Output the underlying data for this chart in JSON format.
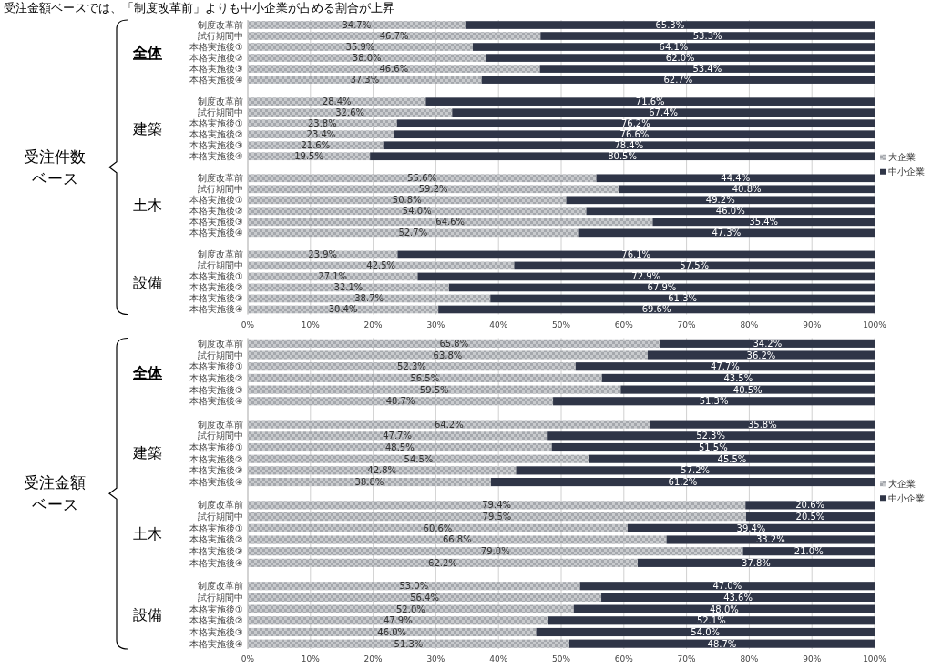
{
  "chart_data": [
    {
      "type": "bar",
      "orientation": "horizontal",
      "stacked": true,
      "title": "受注金額ベースでは、「制度改革前」よりも中小企業が占める割合が上昇",
      "categories": [
        "制度改革前",
        "試行期間中",
        "本格実施後①",
        "本格実施後②",
        "本格実施後③",
        "本格実施後④",
        null,
        "制度改革前",
        "試行期間中",
        "本格実施後①",
        "本格実施後②",
        "本格実施後③",
        "本格実施後④",
        null,
        "制度改革前",
        "試行期間中",
        "本格実施後①",
        "本格実施後②",
        "本格実施後③",
        "本格実施後④",
        null,
        "制度改革前",
        "試行期間中",
        "本格実施後①",
        "本格実施後②",
        "本格実施後③",
        "本格実施後④"
      ],
      "series": [
        {
          "name": "大企業",
          "color": "#a5a8ad",
          "values": [
            34.7,
            46.7,
            35.9,
            38.0,
            46.6,
            37.3,
            null,
            28.4,
            32.6,
            23.8,
            23.4,
            21.6,
            19.5,
            null,
            55.6,
            59.2,
            50.8,
            54.0,
            64.6,
            52.7,
            null,
            23.9,
            42.5,
            27.1,
            32.1,
            38.7,
            30.4
          ],
          "value_labels": [
            "34.7%",
            "46.7%",
            "35.9%",
            "38.0%",
            "46.6%",
            "37.3%",
            null,
            "28.4%",
            "32.6%",
            "23.8%",
            "23.4%",
            "21.6%",
            "19.5%",
            null,
            "55.6%",
            "59.2%",
            "50.8%",
            "54.0%",
            "64.6%",
            "52.7%",
            null,
            "23.9%",
            "42.5%",
            "27.1%",
            "32.1%",
            "38.7%",
            "30.4%"
          ]
        },
        {
          "name": "中小企業",
          "color": "#2f3547",
          "values": [
            65.3,
            53.3,
            64.1,
            62.0,
            53.4,
            62.7,
            null,
            71.6,
            67.4,
            76.2,
            76.6,
            78.4,
            80.5,
            null,
            44.4,
            40.8,
            49.2,
            46.0,
            35.4,
            47.3,
            null,
            76.1,
            57.5,
            72.9,
            67.9,
            61.3,
            69.6
          ],
          "value_labels": [
            "65.3%",
            "53.3%",
            "64.1%",
            "62.0%",
            "53.4%",
            "62.7%",
            null,
            "71.6%",
            "67.4%",
            "76.2%",
            "76.6%",
            "78.4%",
            "80.5%",
            null,
            "44.4%",
            "40.8%",
            "49.2%",
            "46.0%",
            "35.4%",
            "47.3%",
            null,
            "76.1%",
            "57.5%",
            "72.9%",
            "67.9%",
            "61.3%",
            "69.6%"
          ]
        }
      ],
      "xlim": [
        0,
        100
      ],
      "xticks": [
        {
          "value": 0,
          "label": "0%"
        },
        {
          "value": 10,
          "label": "10%"
        },
        {
          "value": 20,
          "label": "20%"
        },
        {
          "value": 30,
          "label": "30%"
        },
        {
          "value": 40,
          "label": "40%"
        },
        {
          "value": 50,
          "label": "50%"
        },
        {
          "value": 60,
          "label": "60%"
        },
        {
          "value": 70,
          "label": "70%"
        },
        {
          "value": 80,
          "label": "80%"
        },
        {
          "value": 90,
          "label": "90%"
        },
        {
          "value": 100,
          "label": "100%"
        }
      ],
      "grid": "x",
      "legend": "right",
      "annotations": [
        "全体",
        "建築",
        "土木",
        "設備",
        "受注件数",
        "ベース"
      ]
    },
    {
      "type": "bar",
      "orientation": "horizontal",
      "stacked": true,
      "categories": [
        "制度改革前",
        "試行期間中",
        "本格実施後①",
        "本格実施後②",
        "本格実施後③",
        "本格実施後④",
        null,
        "制度改革前",
        "試行期間中",
        "本格実施後①",
        "本格実施後②",
        "本格実施後③",
        "本格実施後④",
        null,
        "制度改革前",
        "試行期間中",
        "本格実施後①",
        "本格実施後②",
        "本格実施後③",
        "本格実施後④",
        null,
        "制度改革前",
        "試行期間中",
        "本格実施後①",
        "本格実施後②",
        "本格実施後③",
        "本格実施後④"
      ],
      "series": [
        {
          "name": "大企業",
          "color": "#a5a8ad",
          "values": [
            65.8,
            63.8,
            52.3,
            56.5,
            59.5,
            48.7,
            null,
            64.2,
            47.7,
            48.5,
            54.5,
            42.8,
            38.8,
            null,
            79.4,
            79.5,
            60.6,
            66.8,
            79.0,
            62.2,
            null,
            53.0,
            56.4,
            52.0,
            47.9,
            46.0,
            51.3
          ],
          "value_labels": [
            "65.8%",
            "63.8%",
            "52.3%",
            "56.5%",
            "59.5%",
            "48.7%",
            null,
            "64.2%",
            "47.7%",
            "48.5%",
            "54.5%",
            "42.8%",
            "38.8%",
            null,
            "79.4%",
            "79.5%",
            "60.6%",
            "66.8%",
            "79.0%",
            "62.2%",
            null,
            "53.0%",
            "56.4%",
            "52.0%",
            "47.9%",
            "46.0%",
            "51.3%"
          ]
        },
        {
          "name": "中小企業",
          "color": "#2f3547",
          "values": [
            34.2,
            36.2,
            47.7,
            43.5,
            40.5,
            51.3,
            null,
            35.8,
            52.3,
            51.5,
            45.5,
            57.2,
            61.2,
            null,
            20.6,
            20.5,
            39.4,
            33.2,
            21.0,
            37.8,
            null,
            47.0,
            43.6,
            48.0,
            52.1,
            54.0,
            48.7
          ],
          "value_labels": [
            "34.2%",
            "36.2%",
            "47.7%",
            "43.5%",
            "40.5%",
            "51.3%",
            null,
            "35.8%",
            "52.3%",
            "51.5%",
            "45.5%",
            "57.2%",
            "61.2%",
            null,
            "20.6%",
            "20.5%",
            "39.4%",
            "33.2%",
            "21.0%",
            "37.8%",
            null,
            "47.0%",
            "43.6%",
            "48.0%",
            "52.1%",
            "54.0%",
            "48.7%"
          ]
        }
      ],
      "xlim": [
        0,
        100
      ],
      "xticks": [
        {
          "value": 0,
          "label": "0%"
        },
        {
          "value": 10,
          "label": "10%"
        },
        {
          "value": 20,
          "label": "20%"
        },
        {
          "value": 30,
          "label": "30%"
        },
        {
          "value": 40,
          "label": "40%"
        },
        {
          "value": 50,
          "label": "50%"
        },
        {
          "value": 60,
          "label": "60%"
        },
        {
          "value": 70,
          "label": "70%"
        },
        {
          "value": 80,
          "label": "80%"
        },
        {
          "value": 90,
          "label": "90%"
        },
        {
          "value": 100,
          "label": "100%"
        }
      ],
      "grid": "x",
      "legend": "right",
      "annotations": [
        "全体",
        "建築",
        "土木",
        "設備",
        "受注金額",
        "ベース"
      ]
    }
  ]
}
